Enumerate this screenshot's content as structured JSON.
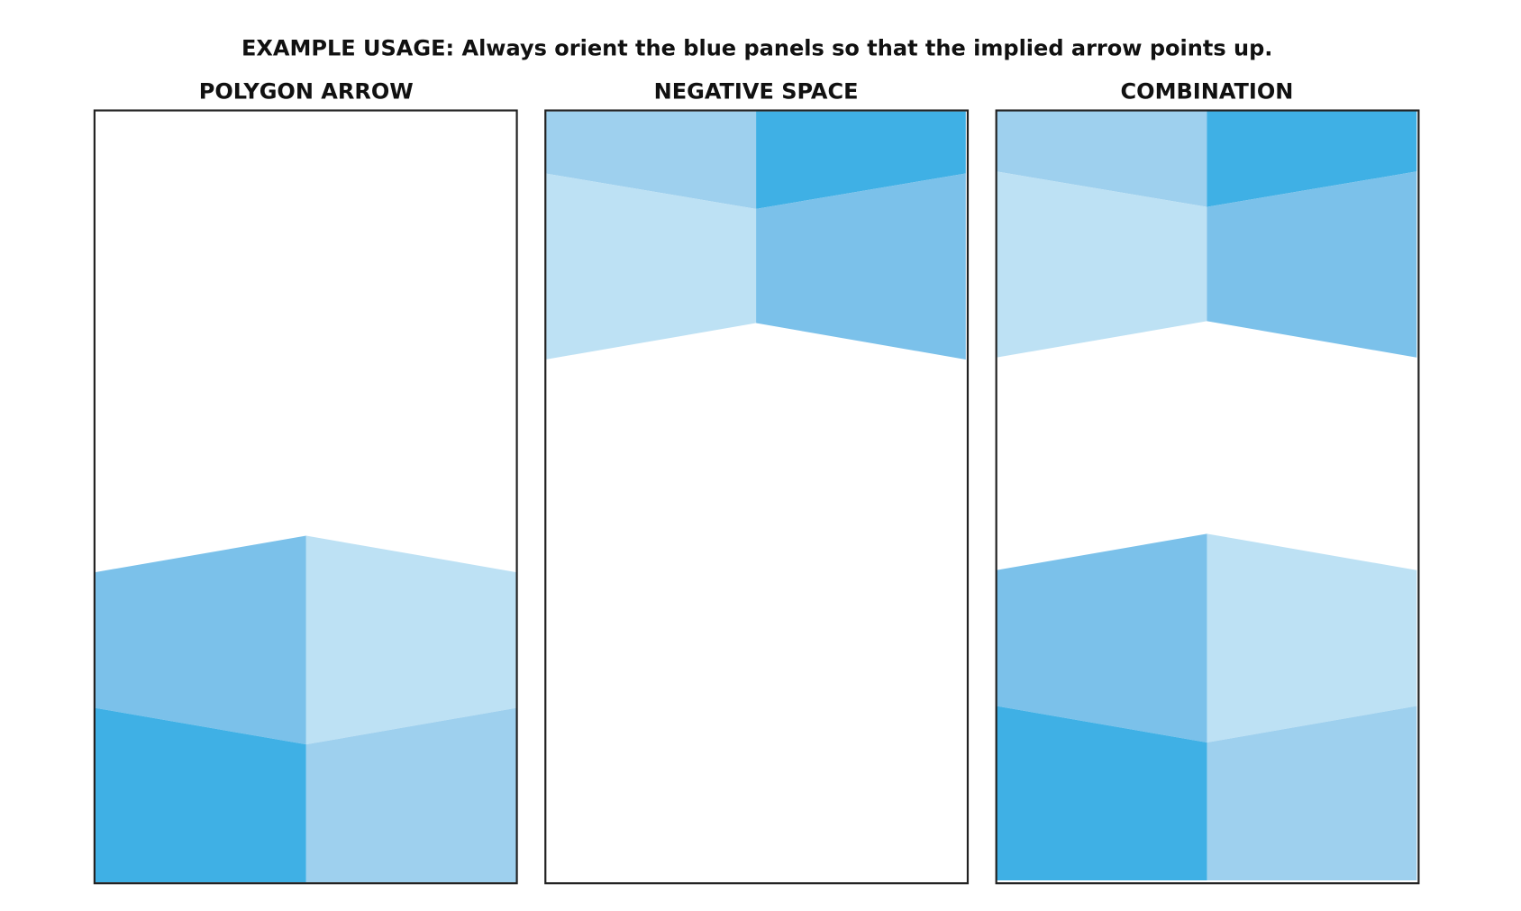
{
  "title": "EXAMPLE USAGE: Always orient the blue panels so that the implied arrow points up.",
  "panels": [
    {
      "label": "POLYGON ARROW"
    },
    {
      "label": "NEGATIVE SPACE"
    },
    {
      "label": "COMBINATION"
    }
  ]
}
